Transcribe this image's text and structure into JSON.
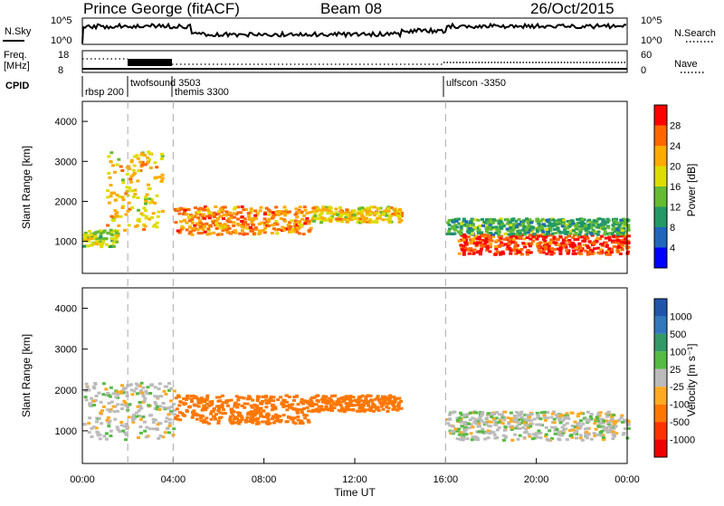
{
  "header": {
    "title": "Prince George (fitACF)",
    "beam": "Beam 08",
    "date": "26/Oct/2015"
  },
  "panels": {
    "nsky_label": "N.Sky",
    "nsearch_label": "N.Search",
    "nsky_ticks": [
      "10^5",
      "10^0"
    ],
    "nsky_right_ticks": [
      "10^5",
      "10^0"
    ],
    "freq_label": "Freq.",
    "freq_unit": "[MHz]",
    "freq_ticks": [
      "18",
      "8"
    ],
    "nave_label": "Nave",
    "nave_ticks": [
      "60",
      "0"
    ],
    "cpid_label": "CPID",
    "cpid_modes": [
      {
        "label": "rbsp 200",
        "start": "00:00"
      },
      {
        "label": "twofsound 3503",
        "start": "02:00"
      },
      {
        "label": "themis 3300",
        "start": "04:00"
      },
      {
        "label": "ulfscon -3350",
        "start": "16:00"
      }
    ]
  },
  "chart_data": [
    {
      "type": "heatmap",
      "name": "power",
      "ylabel": "Slant Range [km]",
      "y_ticks": [
        "1000",
        "2000",
        "3000",
        "4000"
      ],
      "ylim": [
        200,
        4500
      ],
      "colorbar_label": "Power [dB]",
      "colorbar_ticks": [
        "28",
        "24",
        "20",
        "16",
        "12",
        "8",
        "4"
      ],
      "colorbar_colors": [
        "#ff0000",
        "#ff6600",
        "#ffaa00",
        "#dddd00",
        "#66bb33",
        "#229966",
        "#2266bb",
        "#0000ff"
      ],
      "regions": [
        {
          "t0": 0.0,
          "t1": 1.5,
          "r0": 900,
          "r1": 1300,
          "value": 14
        },
        {
          "t0": 1.0,
          "t1": 3.5,
          "r0": 1300,
          "r1": 3300,
          "value": 18
        },
        {
          "t0": 4.0,
          "t1": 10.0,
          "r0": 1200,
          "r1": 1900,
          "value": 22
        },
        {
          "t0": 10.0,
          "t1": 14.0,
          "r0": 1500,
          "r1": 1900,
          "value": 18
        },
        {
          "t0": 16.5,
          "t1": 24.0,
          "r0": 700,
          "r1": 1200,
          "value": 26
        },
        {
          "t0": 16.0,
          "t1": 24.0,
          "r0": 1200,
          "r1": 1600,
          "value": 10
        }
      ]
    },
    {
      "type": "heatmap",
      "name": "velocity",
      "ylabel": "Slant Range [km]",
      "xlabel": "Time UT",
      "x_ticks": [
        "00:00",
        "04:00",
        "08:00",
        "12:00",
        "16:00",
        "20:00",
        "00:00"
      ],
      "y_ticks": [
        "1000",
        "2000",
        "3000",
        "4000"
      ],
      "ylim": [
        200,
        4500
      ],
      "colorbar_label": "Velocity [m s⁻¹]",
      "colorbar_ticks": [
        "1000",
        "500",
        "100",
        "25",
        "-25",
        "-100",
        "-500",
        "-1000"
      ],
      "colorbar_colors": [
        "#2255aa",
        "#3377bb",
        "#339966",
        "#55bb44",
        "#bbbbbb",
        "#ffaa22",
        "#ff7700",
        "#ff3300",
        "#ee0000"
      ],
      "regions": [
        {
          "t0": 0.0,
          "t1": 4.0,
          "r0": 800,
          "r1": 2200,
          "value": 0
        },
        {
          "t0": 4.0,
          "t1": 10.0,
          "r0": 1200,
          "r1": 1900,
          "value": -300
        },
        {
          "t0": 10.0,
          "t1": 14.0,
          "r0": 1500,
          "r1": 1900,
          "value": -300
        },
        {
          "t0": 16.0,
          "t1": 24.0,
          "r0": 800,
          "r1": 1500,
          "value": 0
        }
      ]
    }
  ]
}
